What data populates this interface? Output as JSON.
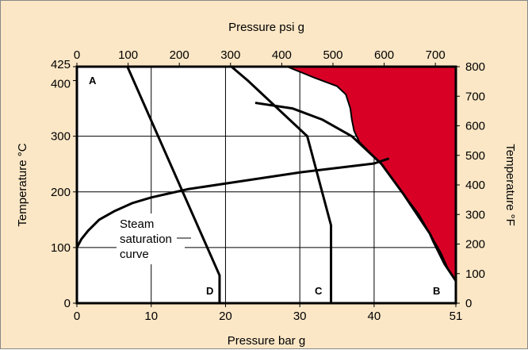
{
  "chart_data": {
    "type": "line",
    "top_axis": {
      "label": "Pressure psi g",
      "ticks": [
        0,
        100,
        200,
        300,
        400,
        500,
        600,
        700
      ],
      "range": [
        0,
        740
      ]
    },
    "bottom_axis": {
      "label": "Pressure bar g",
      "ticks": [
        0,
        10,
        20,
        30,
        40,
        51
      ],
      "range": [
        0,
        51
      ]
    },
    "left_axis": {
      "label": "Temperature °C",
      "ticks": [
        0,
        100,
        200,
        300,
        400,
        425
      ],
      "range": [
        0,
        425
      ]
    },
    "right_axis": {
      "label": "Temperature °F",
      "ticks": [
        0,
        100,
        200,
        300,
        400,
        500,
        600,
        700,
        800
      ],
      "range": [
        0,
        800
      ]
    },
    "grid": true,
    "annotation": {
      "lines": [
        "Steam",
        "saturation",
        "curve"
      ]
    },
    "series": [
      {
        "id": "steam",
        "points": [
          [
            0,
            100
          ],
          [
            0.6,
            115
          ],
          [
            1.5,
            130
          ],
          [
            3,
            150
          ],
          [
            5,
            165
          ],
          [
            7.5,
            180
          ],
          [
            10,
            190
          ],
          [
            15,
            205
          ],
          [
            20,
            215
          ],
          [
            25,
            225
          ],
          [
            30,
            235
          ],
          [
            35,
            243
          ],
          [
            40,
            251
          ],
          [
            42,
            260
          ]
        ]
      },
      {
        "id": "D",
        "label": "D",
        "points": [
          [
            6.8,
            425
          ],
          [
            19.2,
            50
          ],
          [
            19.2,
            0
          ]
        ]
      },
      {
        "id": "C",
        "label": "C",
        "points": [
          [
            20.8,
            425
          ],
          [
            23,
            400
          ],
          [
            31,
            300
          ],
          [
            34.2,
            140
          ],
          [
            34.2,
            0
          ]
        ]
      },
      {
        "id": "B",
        "label": "B",
        "points": [
          [
            51,
            0
          ],
          [
            51,
            40
          ],
          [
            49.5,
            70
          ],
          [
            48,
            110
          ],
          [
            47.5,
            125
          ],
          [
            44,
            195
          ],
          [
            41,
            250
          ],
          [
            37,
            300
          ],
          [
            33,
            330
          ],
          [
            29,
            350
          ],
          [
            24,
            360
          ]
        ]
      },
      {
        "id": "A",
        "label": "A",
        "points": []
      }
    ],
    "region": {
      "color": "#d90026",
      "points": [
        [
          28.3,
          425
        ],
        [
          51,
          425
        ],
        [
          51,
          40
        ],
        [
          50,
          60
        ],
        [
          49,
          90
        ],
        [
          47.5,
          125
        ],
        [
          46,
          160
        ],
        [
          44,
          195
        ],
        [
          41,
          250
        ],
        [
          39.5,
          270
        ],
        [
          38,
          290
        ],
        [
          37.3,
          310
        ],
        [
          37,
          330
        ],
        [
          36.8,
          350
        ],
        [
          36.2,
          375
        ],
        [
          35,
          390
        ],
        [
          32,
          405
        ],
        [
          29.6,
          418
        ],
        [
          28.3,
          425
        ]
      ]
    }
  }
}
